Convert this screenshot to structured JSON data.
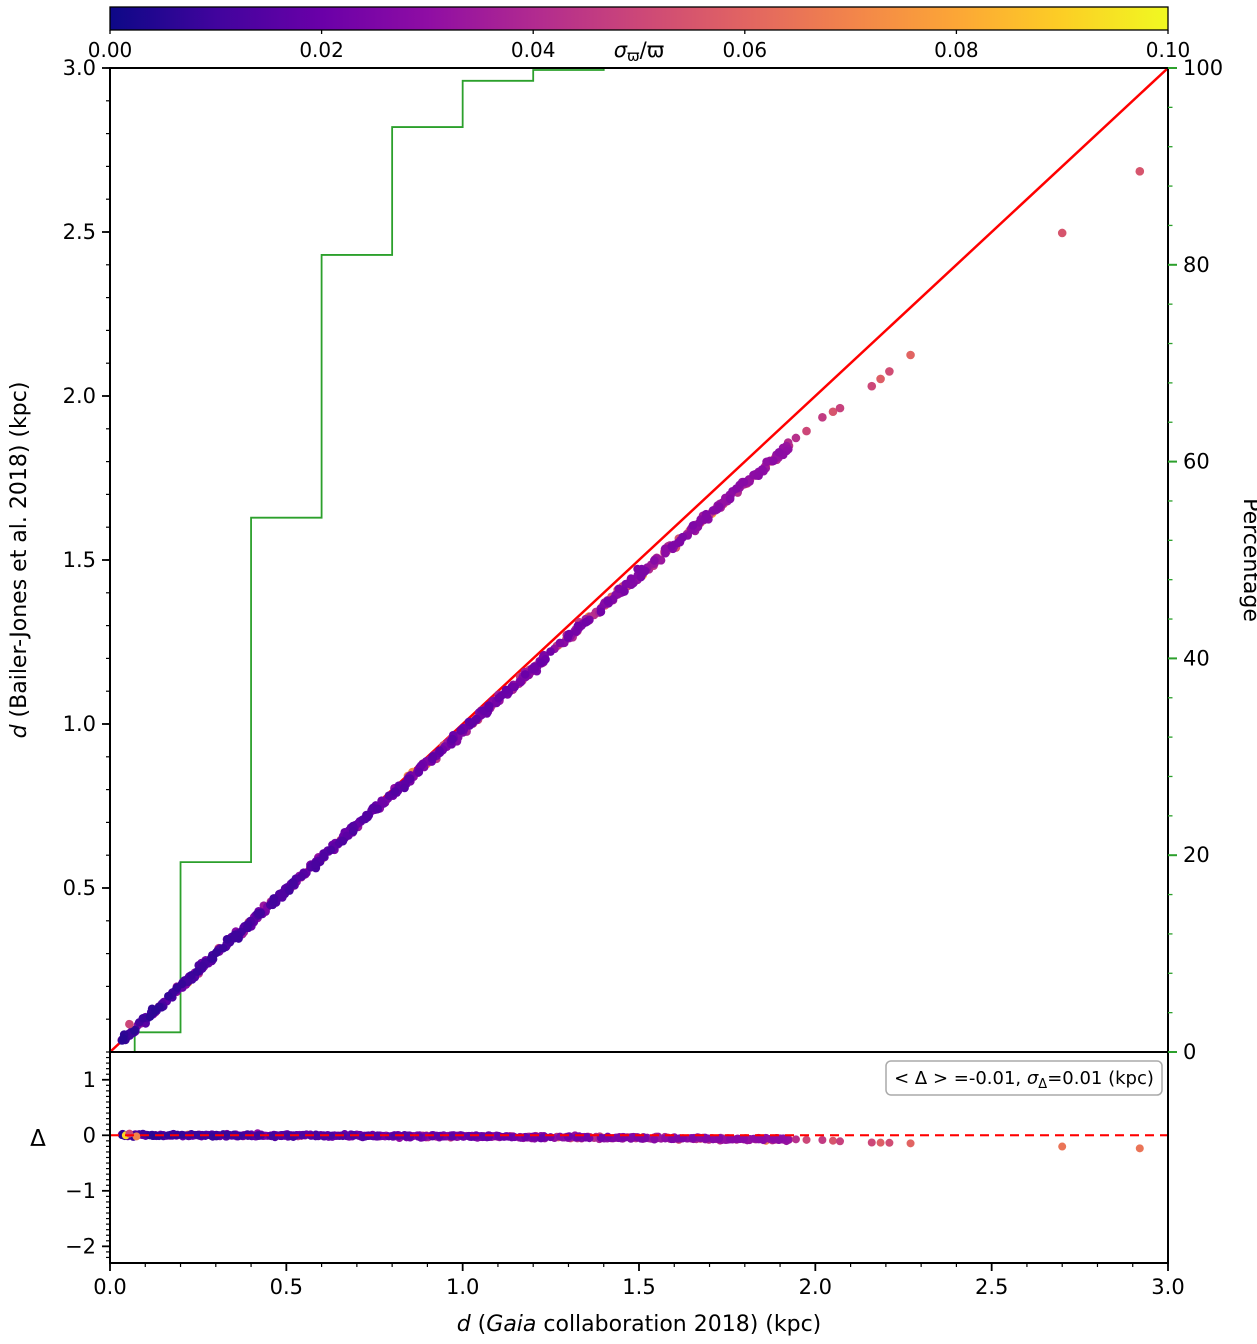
{
  "chart_data": {
    "type": "scatter",
    "title": "",
    "xlabel": "d (Gaia collaboration 2018) (kpc)",
    "xlabel_parts": [
      {
        "t": "d",
        "i": true
      },
      {
        "t": " ("
      },
      {
        "t": "Gaia",
        "i": true
      },
      {
        "t": " collaboration 2018) (kpc)"
      }
    ],
    "ylabel": "d (Bailer-Jones et al. 2018) (kpc)",
    "ylabel_parts": [
      {
        "t": "d",
        "i": true
      },
      {
        "t": " (Bailer-Jones et al. 2018) (kpc)"
      }
    ],
    "y2label": "Percentage",
    "xlim": [
      0.0,
      3.0
    ],
    "ylim": [
      0.0,
      3.0
    ],
    "y2lim": [
      0,
      100
    ],
    "x_ticks": {
      "values": [
        0.0,
        0.5,
        1.0,
        1.5,
        2.0,
        2.5,
        3.0
      ],
      "labels": [
        "0.0",
        "0.5",
        "1.0",
        "1.5",
        "2.0",
        "2.5",
        "3.0"
      ],
      "minor_step": 0.1
    },
    "y_ticks": {
      "values": [
        0.5,
        1.0,
        1.5,
        2.0,
        2.5,
        3.0
      ],
      "labels": [
        "0.5",
        "1.0",
        "1.5",
        "2.0",
        "2.5",
        "3.0"
      ],
      "minor_step": 0.1
    },
    "y2_ticks": {
      "values": [
        0,
        20,
        40,
        60,
        80,
        100
      ],
      "labels": [
        "0",
        "20",
        "40",
        "60",
        "80",
        "100"
      ],
      "minor_step": 4
    },
    "colors": {
      "identity_line": "#ff0000",
      "cumulative_line": "#2ca02c",
      "axis_green": "#2ca02c",
      "zero_line": "#ff0000",
      "spine": "#000000",
      "annotation_border": "#aaaaaa"
    },
    "colorbar": {
      "label": "σϖ/ϖ",
      "label_parts": [
        {
          "t": "σ",
          "i": true
        },
        {
          "t": "ϖ",
          "sub": true
        },
        {
          "t": "/ϖ"
        }
      ],
      "min": 0.0,
      "max": 0.1,
      "tick_values": [
        0.0,
        0.02,
        0.04,
        0.06,
        0.08,
        0.1
      ],
      "tick_labels": [
        "0.00",
        "0.02",
        "0.04",
        "0.06",
        "0.08",
        "0.10"
      ],
      "colormap": "plasma",
      "colors": [
        "#0d0887",
        "#41049d",
        "#6a00a8",
        "#8f0da4",
        "#b12a90",
        "#cc4778",
        "#e16462",
        "#f2844b",
        "#fca636",
        "#fcce25",
        "#f0f921"
      ]
    },
    "identity_line": {
      "x": [
        0,
        3
      ],
      "y": [
        0,
        3
      ]
    },
    "cumulative_percentage": {
      "bin_edges": [
        0.07,
        0.2,
        0.4,
        0.6,
        0.8,
        1.0,
        1.2,
        1.4
      ],
      "values": [
        2,
        19.3,
        54.3,
        81,
        94,
        98.7,
        99.8,
        100
      ],
      "extend_to": 3.0
    },
    "dense_band": {
      "x_min": 0.03,
      "x_max": 1.93,
      "count": 800,
      "quad_coeff": -0.021,
      "y_jitter_sigma": 0.006,
      "color_base": 0.004,
      "color_slope": 0.013,
      "color_exp_scale": 0.012,
      "color_max": 0.095,
      "seed": 42,
      "marker_radius": 4.3
    },
    "outlier_points": [
      {
        "x": 0.055,
        "y": 0.085,
        "c": 0.05
      },
      {
        "x": 1.945,
        "y": 1.872,
        "c": 0.042
      },
      {
        "x": 1.975,
        "y": 1.893,
        "c": 0.05
      },
      {
        "x": 2.02,
        "y": 1.935,
        "c": 0.046
      },
      {
        "x": 2.05,
        "y": 1.952,
        "c": 0.055
      },
      {
        "x": 2.07,
        "y": 1.963,
        "c": 0.048
      },
      {
        "x": 2.16,
        "y": 2.03,
        "c": 0.05
      },
      {
        "x": 2.185,
        "y": 2.052,
        "c": 0.058
      },
      {
        "x": 2.21,
        "y": 2.075,
        "c": 0.052
      },
      {
        "x": 2.27,
        "y": 2.125,
        "c": 0.06
      },
      {
        "x": 2.7,
        "y": 2.497,
        "c": 0.055
      },
      {
        "x": 2.92,
        "y": 2.685,
        "c": 0.055
      }
    ],
    "residual": {
      "ylabel": "Δ",
      "ylim": [
        -2.3,
        1.5
      ],
      "y_ticks": {
        "values": [
          -2,
          -1,
          0,
          1
        ],
        "labels": [
          "−2",
          "−1",
          "0",
          "1"
        ],
        "minor_step": 0.1
      },
      "zero_line_y": 0,
      "jitter_sigma": 0.012,
      "stats": {
        "mean_delta": -0.01,
        "sigma_delta": 0.01,
        "unit": "kpc"
      },
      "annotation_text": "< Δ > =-0.01, σΔ=0.01 (kpc)",
      "annotation_parts": [
        {
          "t": "< Δ > =-0.01, "
        },
        {
          "t": "σ",
          "i": true
        },
        {
          "t": "Δ",
          "sub": true
        },
        {
          "t": "=0.01 (kpc)"
        }
      ],
      "outlier_points": [
        {
          "x": 0.045,
          "d": 0.0,
          "c": 0.092
        },
        {
          "x": 0.055,
          "d": 0.03,
          "c": 0.05
        },
        {
          "x": 0.075,
          "d": -0.02,
          "c": 0.07
        },
        {
          "x": 1.945,
          "d": -0.073,
          "c": 0.042
        },
        {
          "x": 1.975,
          "d": -0.082,
          "c": 0.05
        },
        {
          "x": 2.02,
          "d": -0.085,
          "c": 0.046
        },
        {
          "x": 2.05,
          "d": -0.098,
          "c": 0.055
        },
        {
          "x": 2.07,
          "d": -0.108,
          "c": 0.048
        },
        {
          "x": 2.16,
          "d": -0.13,
          "c": 0.05
        },
        {
          "x": 2.185,
          "d": -0.133,
          "c": 0.058
        },
        {
          "x": 2.21,
          "d": -0.135,
          "c": 0.052
        },
        {
          "x": 2.27,
          "d": -0.145,
          "c": 0.06
        },
        {
          "x": 2.7,
          "d": -0.203,
          "c": 0.065
        },
        {
          "x": 2.92,
          "d": -0.235,
          "c": 0.065
        }
      ]
    }
  }
}
